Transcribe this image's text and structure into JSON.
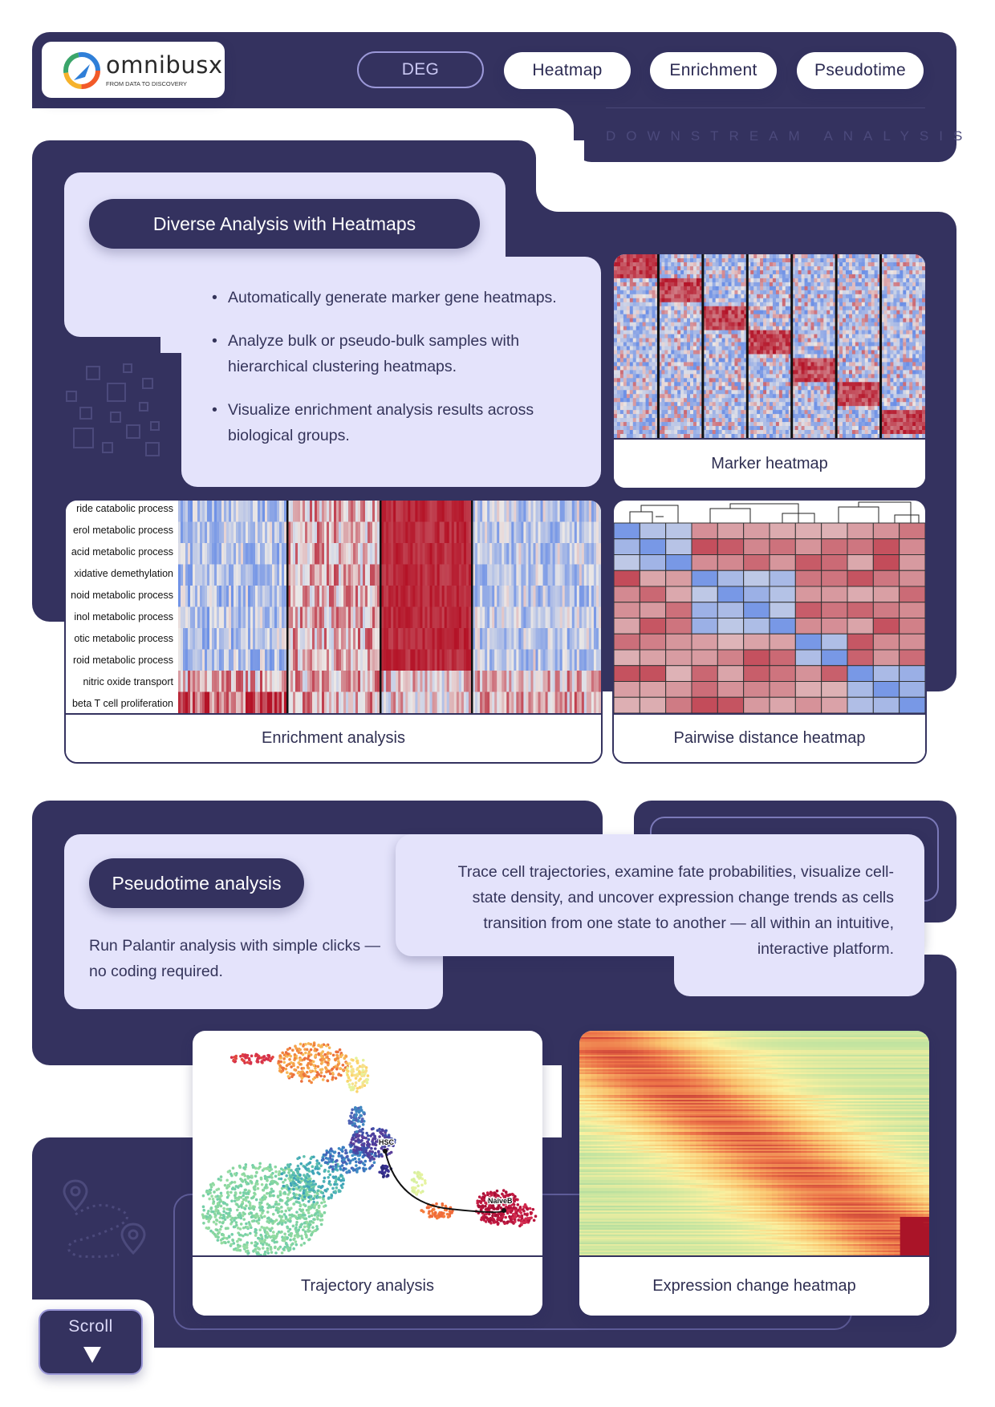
{
  "brand": {
    "name": "omnibusx",
    "tagline": "FROM DATA TO DISCOVERY"
  },
  "nav": {
    "tabs": [
      {
        "label": "DEG",
        "active": true
      },
      {
        "label": "Heatmap",
        "active": false
      },
      {
        "label": "Enrichment",
        "active": false
      },
      {
        "label": "Pseudotime",
        "active": false
      }
    ],
    "section_caption": "DOWNSTREAM ANALYSIS"
  },
  "heatmaps": {
    "title": "Diverse Analysis with Heatmaps",
    "bullets": [
      "Automatically generate marker gene heatmaps.",
      "Analyze bulk or pseudo-bulk samples with hierarchical clustering heatmaps.",
      "Visualize enrichment analysis results across biological groups."
    ],
    "marker_caption": "Marker heatmap",
    "enrichment_caption": "Enrichment analysis",
    "pairwise_caption": "Pairwise distance heatmap",
    "enrichment_terms": [
      "ride catabolic process",
      "erol metabolic process",
      "acid metabolic process",
      "xidative demethylation",
      "noid metabolic process",
      "inol metabolic process",
      "otic metabolic process",
      "roid metabolic process",
      "nitric oxide transport",
      "beta T cell proliferation"
    ]
  },
  "pseudotime": {
    "title": "Pseudotime analysis",
    "subtitle": "Run Palantir analysis with simple clicks — no coding required.",
    "description": "Trace cell trajectories, examine fate probabilities, visualize cell-state density, and uncover expression change trends as cells transition from one state to another — all within an intuitive, interactive platform.",
    "trajectory_caption": "Trajectory analysis",
    "expression_caption": "Expression change heatmap",
    "start_label": "HSC",
    "end_label": "NaiveB"
  },
  "scroll": {
    "label": "Scroll",
    "icon": "triangle-down-icon"
  },
  "colors": {
    "navy": "#34325f",
    "lavender": "#e4e3fb",
    "blue": "#6b8fe6",
    "red": "#b40f24"
  }
}
